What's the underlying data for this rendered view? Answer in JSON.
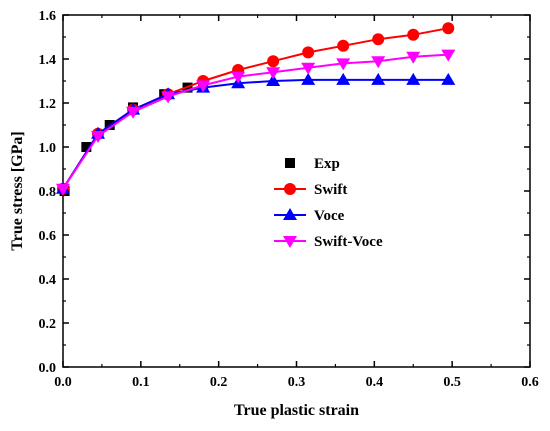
{
  "chart_data": {
    "type": "line",
    "xlabel": "True plastic strain",
    "ylabel": "True stress [GPa]",
    "xlim": [
      0,
      0.6
    ],
    "ylim": [
      0,
      1.6
    ],
    "xticks": [
      "0.0",
      "0.1",
      "0.2",
      "0.3",
      "0.4",
      "0.5",
      "0.6"
    ],
    "yticks": [
      "0.0",
      "0.2",
      "0.4",
      "0.6",
      "0.8",
      "1.0",
      "1.2",
      "1.4",
      "1.6"
    ],
    "grid": false,
    "legend_position": "center-right",
    "series": [
      {
        "name": "Exp",
        "marker": "square",
        "line": false,
        "color": "#000000",
        "x": [
          0.002,
          0.03,
          0.06,
          0.09,
          0.13,
          0.16,
          0.18
        ],
        "y": [
          0.8,
          1.0,
          1.1,
          1.18,
          1.24,
          1.27,
          1.28
        ]
      },
      {
        "name": "Swift",
        "marker": "circle",
        "line": true,
        "color": "#ff0000",
        "x": [
          0.0,
          0.045,
          0.09,
          0.135,
          0.18,
          0.225,
          0.27,
          0.315,
          0.36,
          0.405,
          0.45,
          0.495
        ],
        "y": [
          0.81,
          1.06,
          1.17,
          1.24,
          1.3,
          1.35,
          1.39,
          1.43,
          1.46,
          1.49,
          1.51,
          1.54
        ]
      },
      {
        "name": "Voce",
        "marker": "triangle-up",
        "line": true,
        "color": "#0000ff",
        "x": [
          0.0,
          0.045,
          0.09,
          0.135,
          0.18,
          0.225,
          0.27,
          0.315,
          0.36,
          0.405,
          0.45,
          0.495
        ],
        "y": [
          0.81,
          1.06,
          1.17,
          1.24,
          1.27,
          1.29,
          1.3,
          1.305,
          1.305,
          1.305,
          1.305,
          1.305
        ]
      },
      {
        "name": "Swift-Voce",
        "marker": "triangle-down",
        "line": true,
        "color": "#ff00ff",
        "x": [
          0.0,
          0.045,
          0.09,
          0.135,
          0.18,
          0.225,
          0.27,
          0.315,
          0.36,
          0.405,
          0.45,
          0.495
        ],
        "y": [
          0.81,
          1.05,
          1.16,
          1.23,
          1.28,
          1.32,
          1.34,
          1.36,
          1.38,
          1.39,
          1.41,
          1.42
        ]
      }
    ]
  }
}
